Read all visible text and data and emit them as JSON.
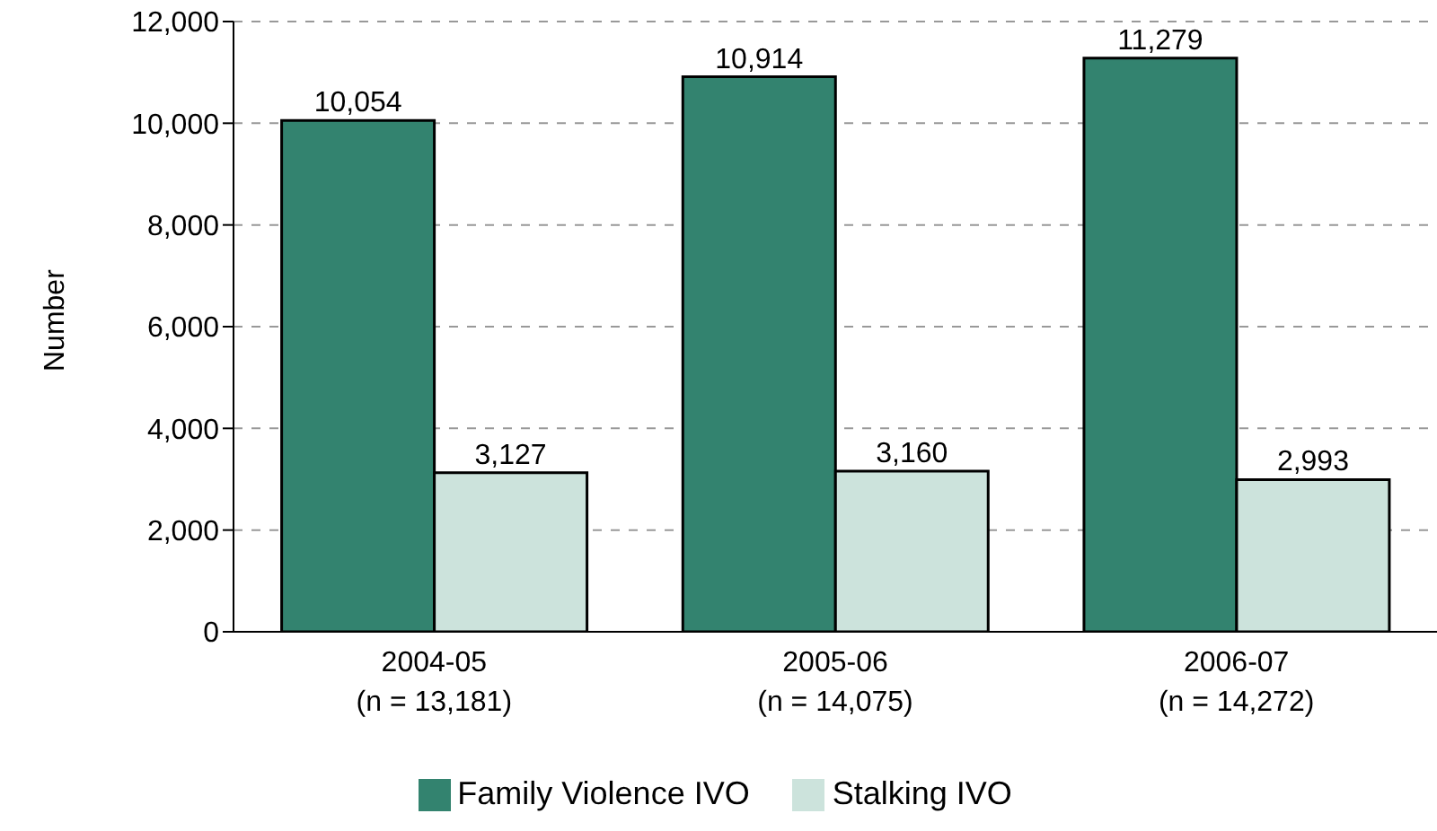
{
  "chart_data": {
    "type": "bar",
    "ylabel": "Number",
    "categories": [
      "2004-05\n(n = 13,181)",
      "2005-06\n(n = 14,075)",
      "2006-07\n(n = 14,272)"
    ],
    "series": [
      {
        "name": "Family Violence IVO",
        "color": "#33836f",
        "values": [
          10054,
          10914,
          11279
        ],
        "value_labels": [
          "10,054",
          "10,914",
          "11,279"
        ]
      },
      {
        "name": "Stalking IVO",
        "color": "#cce3dc",
        "values": [
          3127,
          3160,
          2993
        ],
        "value_labels": [
          "3,127",
          "3,160",
          "2,993"
        ]
      }
    ],
    "ylim": [
      0,
      12000
    ],
    "yticks": [
      0,
      {
        "value": 2000,
        "label": "2,000"
      },
      {
        "value": 4000,
        "label": "4,000"
      },
      {
        "value": 6000,
        "label": "6,000"
      },
      {
        "value": 8000,
        "label": "8,000"
      },
      {
        "value": 10000,
        "label": "10,000"
      },
      {
        "value": 12000,
        "label": "12,000"
      }
    ],
    "grid": "y",
    "legend": "bottom"
  }
}
